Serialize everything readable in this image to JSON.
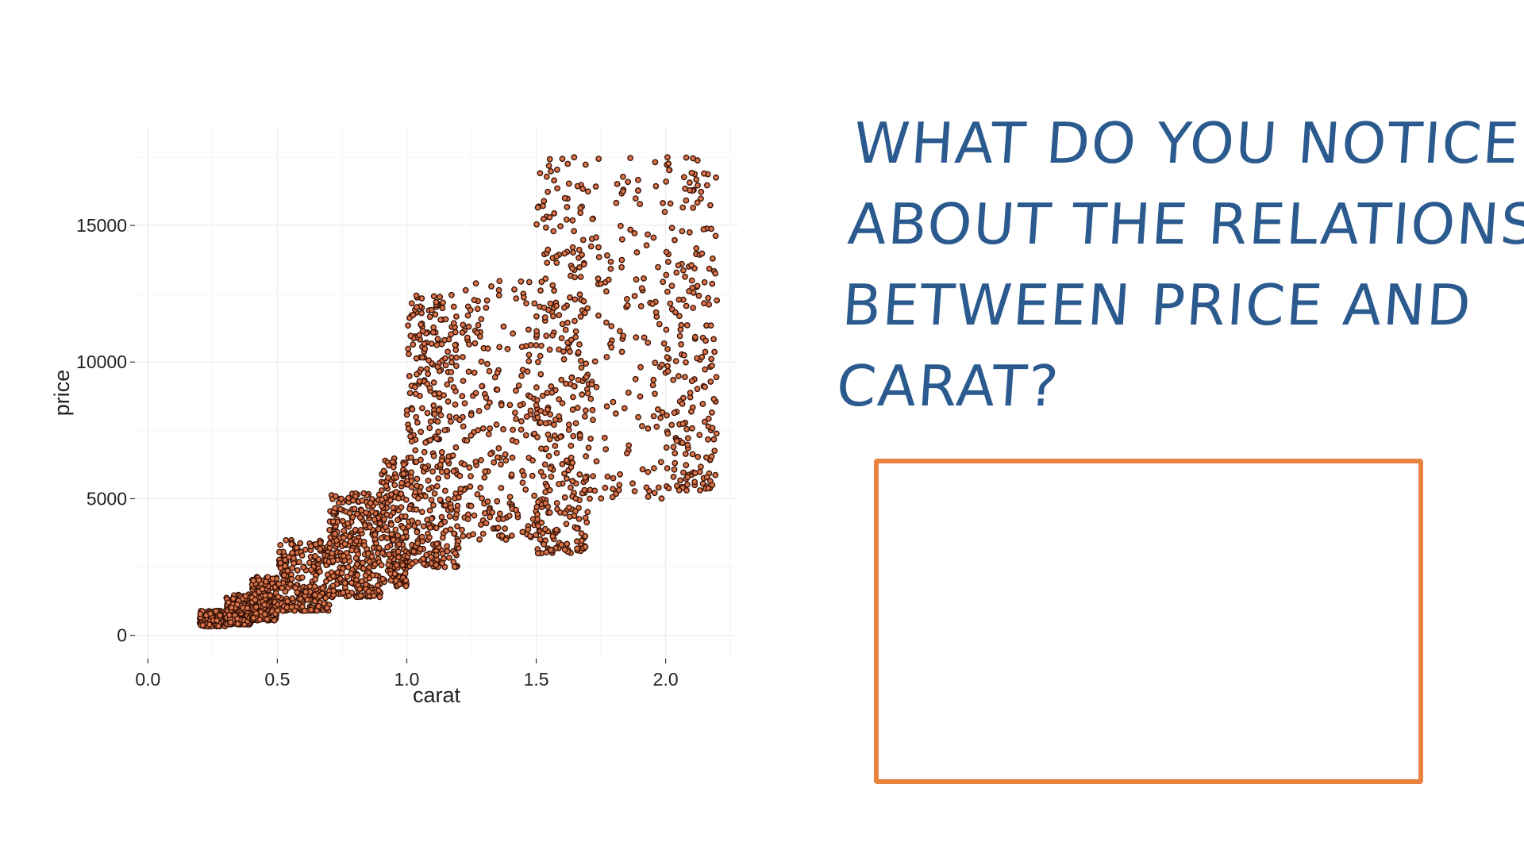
{
  "chart_data": {
    "type": "scatter",
    "xlabel": "carat",
    "ylabel": "price",
    "x_ticks": [
      "0.0",
      "0.5",
      "1.0",
      "1.5",
      "2.0"
    ],
    "y_ticks": [
      "0",
      "5000",
      "10000",
      "15000"
    ],
    "xlim": [
      -0.05,
      2.28
    ],
    "ylim": [
      -850,
      18600
    ],
    "grid": true,
    "legend": "none",
    "point_fill": "#d9744a",
    "point_stroke": "#3a1408",
    "clusters": [
      {
        "carat_range": [
          0.2,
          0.3
        ],
        "price_range": [
          330,
          900
        ],
        "weight": 10
      },
      {
        "carat_range": [
          0.3,
          0.4
        ],
        "price_range": [
          400,
          1500
        ],
        "weight": 14
      },
      {
        "carat_range": [
          0.4,
          0.5
        ],
        "price_range": [
          550,
          2200
        ],
        "weight": 10
      },
      {
        "carat_range": [
          0.5,
          0.7
        ],
        "price_range": [
          900,
          3500
        ],
        "weight": 14
      },
      {
        "carat_range": [
          0.7,
          0.9
        ],
        "price_range": [
          1400,
          5200
        ],
        "weight": 18
      },
      {
        "carat_range": [
          0.9,
          1.0
        ],
        "price_range": [
          1800,
          6500
        ],
        "weight": 10
      },
      {
        "carat_range": [
          1.0,
          1.2
        ],
        "price_range": [
          2500,
          12500
        ],
        "weight": 20
      },
      {
        "carat_range": [
          1.2,
          1.5
        ],
        "price_range": [
          3500,
          13000
        ],
        "weight": 12
      },
      {
        "carat_range": [
          1.5,
          1.7
        ],
        "price_range": [
          3000,
          17500
        ],
        "weight": 18
      },
      {
        "carat_range": [
          1.7,
          2.0
        ],
        "price_range": [
          5000,
          17500
        ],
        "weight": 8
      },
      {
        "carat_range": [
          2.0,
          2.2
        ],
        "price_range": [
          5300,
          17500
        ],
        "weight": 12
      }
    ]
  },
  "question": {
    "line1": "WHAT DO YOU NOTICE",
    "line2": "ABOUT THE RELATIONSHIP",
    "line3": "BETWEEN PRICE AND",
    "line4": "CARAT?"
  },
  "colors": {
    "handwriting": "#2b5a8f",
    "box_border": "#e8823f"
  }
}
